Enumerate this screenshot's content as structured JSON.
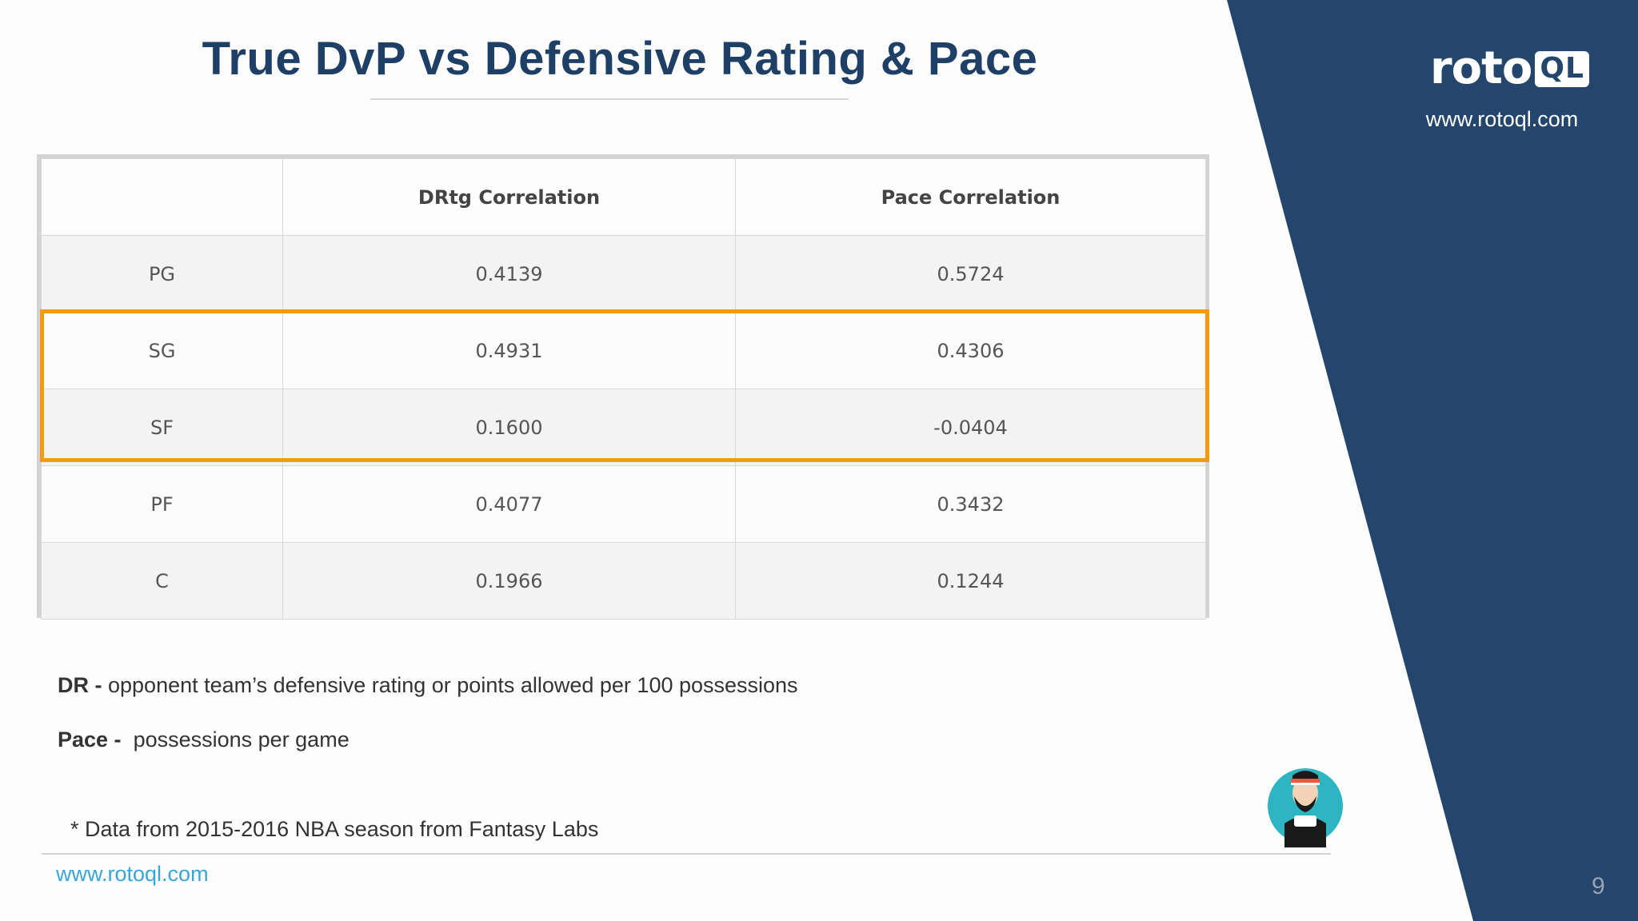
{
  "slide": {
    "title": "True DvP vs Defensive Rating & Pace",
    "page_number": "9"
  },
  "brand": {
    "logo_text": "roto",
    "logo_box_text": "QL",
    "url": "www.rotoql.com",
    "colors": {
      "navy": "#24466d",
      "title": "#1e3f66",
      "highlight": "#f39c12",
      "link": "#3aa6d8"
    }
  },
  "table": {
    "headers": [
      "",
      "DRtg Correlation",
      "Pace Correlation"
    ],
    "rows": [
      [
        "PG",
        "0.4139",
        "0.5724"
      ],
      [
        "SG",
        "0.4931",
        "0.4306"
      ],
      [
        "SF",
        "0.1600",
        "-0.0404"
      ],
      [
        "PF",
        "0.4077",
        "0.3432"
      ],
      [
        "C",
        "0.1966",
        "0.1244"
      ]
    ],
    "highlighted_rows": [
      "SG",
      "SF"
    ]
  },
  "definitions": {
    "dr_term": "DR -",
    "dr_text": " opponent team’s defensive rating or points allowed per 100 possessions",
    "pace_term": "Pace -",
    "pace_text": "  possessions per game"
  },
  "footnote": "* Data from 2015-2016 NBA season from Fantasy Labs",
  "footer_url": "www.rotoql.com",
  "icons": {
    "mascot": "mascot-avatar-icon"
  }
}
